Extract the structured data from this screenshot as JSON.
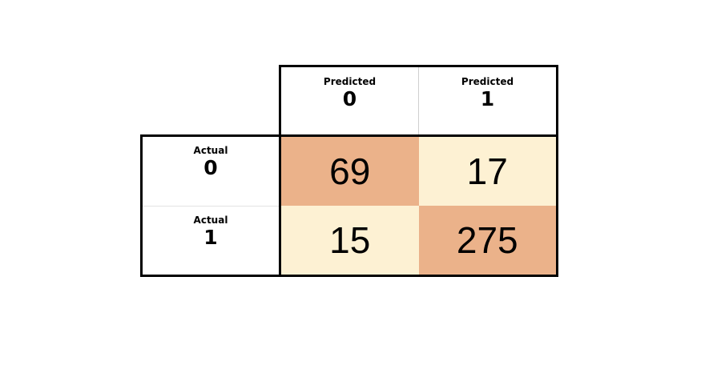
{
  "header": {
    "columns": [
      {
        "label": "Predicted",
        "value": "0"
      },
      {
        "label": "Predicted",
        "value": "1"
      }
    ]
  },
  "rows": [
    {
      "label": "Actual",
      "value": "0"
    },
    {
      "label": "Actual",
      "value": "1"
    }
  ],
  "matrix": [
    [
      "69",
      "17"
    ],
    [
      "15",
      "275"
    ]
  ],
  "colors": {
    "diagonal": "#ebb28a",
    "off_diagonal": "#fdf1d3",
    "border": "#000000"
  }
}
